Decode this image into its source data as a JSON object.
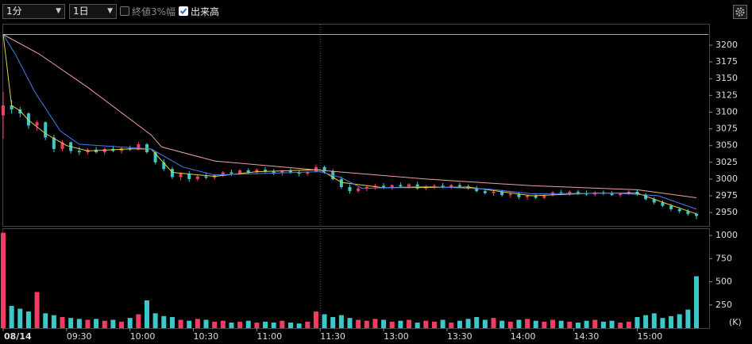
{
  "toolbar": {
    "interval": "1分",
    "range": "1日",
    "options": [
      {
        "label": "終値3%幅",
        "checked": false
      },
      {
        "label": "出来高",
        "checked": true
      }
    ]
  },
  "chart_data": [
    {
      "type": "candlestick",
      "x": [
        0,
        4,
        8,
        12,
        16,
        20,
        24,
        28,
        32,
        36,
        40,
        44,
        48,
        52,
        56,
        60,
        64,
        68,
        72,
        76,
        80,
        84,
        88,
        92,
        96,
        100,
        104,
        108,
        112,
        116,
        120,
        124,
        128,
        132,
        136,
        140,
        144,
        148,
        152,
        156,
        160,
        164,
        168,
        172,
        176,
        180,
        184,
        188,
        192,
        196,
        200,
        204,
        208,
        212,
        216,
        220,
        224,
        228,
        232,
        236,
        240,
        244,
        248,
        252,
        256,
        260,
        264,
        268,
        272,
        276,
        280,
        284,
        288,
        292,
        296,
        300,
        304,
        308,
        312,
        316,
        320,
        324,
        328
      ],
      "open": [
        3095,
        3110,
        3104,
        3098,
        3080,
        3085,
        3062,
        3045,
        3055,
        3042,
        3040,
        3044,
        3040,
        3045,
        3042,
        3046,
        3044,
        3052,
        3040,
        3025,
        3015,
        3003,
        3008,
        3000,
        3004,
        3002,
        3006,
        3010,
        3008,
        3013,
        3010,
        3014,
        3011,
        3009,
        3012,
        3010,
        3008,
        3011,
        3018,
        3012,
        3000,
        2988,
        2982,
        2986,
        2988,
        2990,
        2987,
        2991,
        2989,
        2992,
        2986,
        2989,
        2990,
        2988,
        2991,
        2989,
        2986,
        2982,
        2979,
        2981,
        2976,
        2978,
        2973,
        2975,
        2972,
        2976,
        2980,
        2978,
        2981,
        2979,
        2977,
        2980,
        2978,
        2976,
        2979,
        2981,
        2977,
        2970,
        2965,
        2960,
        2955,
        2952,
        2948
      ],
      "high": [
        3130,
        3118,
        3108,
        3100,
        3088,
        3086,
        3066,
        3058,
        3056,
        3048,
        3046,
        3048,
        3047,
        3050,
        3048,
        3050,
        3055,
        3054,
        3042,
        3030,
        3018,
        3010,
        3012,
        3006,
        3010,
        3008,
        3012,
        3014,
        3015,
        3016,
        3016,
        3018,
        3015,
        3014,
        3016,
        3013,
        3012,
        3022,
        3020,
        3015,
        3004,
        2992,
        2988,
        2990,
        2993,
        2994,
        2992,
        2995,
        2994,
        2996,
        2991,
        2993,
        2994,
        2993,
        2995,
        2992,
        2990,
        2986,
        2983,
        2984,
        2980,
        2981,
        2977,
        2978,
        2977,
        2982,
        2984,
        2983,
        2984,
        2983,
        2982,
        2983,
        2982,
        2980,
        2983,
        2984,
        2979,
        2973,
        2968,
        2963,
        2958,
        2955,
        2950
      ],
      "low": [
        3060,
        3098,
        3092,
        3075,
        3072,
        3058,
        3040,
        3042,
        3038,
        3036,
        3037,
        3038,
        3036,
        3040,
        3038,
        3042,
        3043,
        3038,
        3022,
        3012,
        3000,
        2998,
        2996,
        2997,
        3000,
        2999,
        3003,
        3005,
        3006,
        3008,
        3007,
        3009,
        3006,
        3005,
        3008,
        3004,
        3005,
        3010,
        3008,
        2998,
        2985,
        2978,
        2979,
        2982,
        2984,
        2985,
        2984,
        2987,
        2986,
        2984,
        2983,
        2985,
        2986,
        2985,
        2987,
        2984,
        2980,
        2977,
        2975,
        2974,
        2972,
        2970,
        2969,
        2970,
        2970,
        2974,
        2976,
        2975,
        2976,
        2975,
        2974,
        2976,
        2975,
        2973,
        2976,
        2975,
        2968,
        2962,
        2958,
        2952,
        2949,
        2945,
        2940
      ],
      "close": [
        3110,
        3104,
        3098,
        3080,
        3085,
        3062,
        3045,
        3055,
        3042,
        3040,
        3044,
        3040,
        3045,
        3042,
        3046,
        3044,
        3052,
        3040,
        3025,
        3015,
        3003,
        3008,
        3000,
        3004,
        3002,
        3006,
        3010,
        3008,
        3013,
        3010,
        3014,
        3011,
        3009,
        3012,
        3010,
        3008,
        3011,
        3018,
        3012,
        3000,
        2988,
        2982,
        2986,
        2988,
        2990,
        2987,
        2991,
        2989,
        2992,
        2986,
        2989,
        2990,
        2988,
        2991,
        2989,
        2986,
        2982,
        2979,
        2981,
        2976,
        2978,
        2973,
        2975,
        2972,
        2976,
        2980,
        2978,
        2981,
        2979,
        2977,
        2980,
        2978,
        2976,
        2979,
        2981,
        2977,
        2970,
        2965,
        2960,
        2955,
        2952,
        2948,
        2945
      ],
      "up_color": "#f23c64",
      "down_color": "#3cc8c8",
      "series": [
        {
          "color": "#e8d040",
          "x": [
            0,
            4,
            8,
            12,
            20,
            30,
            40,
            60,
            70,
            80,
            100,
            120,
            150,
            160,
            180,
            220,
            250,
            280,
            300,
            315,
            328
          ],
          "values": [
            3216,
            3110,
            3102,
            3088,
            3068,
            3050,
            3042,
            3045,
            3045,
            3010,
            3004,
            3011,
            3014,
            2995,
            2987,
            2988,
            2975,
            2979,
            2979,
            2962,
            2948
          ]
        },
        {
          "color": "#4a7cf0",
          "x": [
            0,
            6,
            15,
            27,
            36,
            60,
            70,
            85,
            100,
            150,
            160,
            170,
            200,
            230,
            250,
            290,
            310,
            328
          ],
          "values": [
            3216,
            3185,
            3130,
            3072,
            3052,
            3047,
            3045,
            3018,
            3006,
            3011,
            3002,
            2986,
            2989,
            2985,
            2978,
            2979,
            2975,
            2955
          ]
        },
        {
          "color": "#f0a0a0",
          "x": [
            0,
            17,
            40,
            70,
            75,
            100,
            150,
            200,
            250,
            300,
            328
          ],
          "values": [
            3216,
            3187,
            3137,
            3066,
            3048,
            3027,
            3013,
            3000,
            2990,
            2984,
            2972
          ]
        }
      ],
      "reference_line": {
        "value": 3216,
        "color": "#e8a040"
      },
      "session_break": 150,
      "xlim": [
        0,
        334
      ],
      "ylim": [
        2930,
        3232
      ],
      "yticks": [
        2950,
        2975,
        3000,
        3025,
        3050,
        3075,
        3100,
        3125,
        3150,
        3175,
        3200
      ]
    },
    {
      "type": "bar",
      "x": [
        0,
        4,
        8,
        12,
        16,
        20,
        24,
        28,
        32,
        36,
        40,
        44,
        48,
        52,
        56,
        60,
        64,
        68,
        72,
        76,
        80,
        84,
        88,
        92,
        96,
        100,
        104,
        108,
        112,
        116,
        120,
        124,
        128,
        132,
        136,
        140,
        144,
        148,
        152,
        156,
        160,
        164,
        168,
        172,
        176,
        180,
        184,
        188,
        192,
        196,
        200,
        204,
        208,
        212,
        216,
        220,
        224,
        228,
        232,
        236,
        240,
        244,
        248,
        252,
        256,
        260,
        264,
        268,
        272,
        276,
        280,
        284,
        288,
        292,
        296,
        300,
        304,
        308,
        312,
        316,
        320,
        324,
        328
      ],
      "values": [
        1030,
        240,
        210,
        180,
        390,
        160,
        140,
        120,
        110,
        100,
        90,
        100,
        80,
        90,
        70,
        110,
        150,
        300,
        160,
        130,
        120,
        90,
        80,
        100,
        90,
        70,
        80,
        60,
        70,
        80,
        60,
        70,
        60,
        80,
        60,
        50,
        70,
        180,
        150,
        120,
        140,
        110,
        90,
        80,
        100,
        90,
        70,
        80,
        90,
        60,
        80,
        70,
        90,
        60,
        80,
        100,
        120,
        90,
        110,
        80,
        70,
        90,
        100,
        80,
        70,
        90,
        80,
        70,
        60,
        80,
        90,
        70,
        80,
        60,
        70,
        120,
        140,
        160,
        110,
        130,
        150,
        200,
        560
      ],
      "unit_label": "(K)",
      "session_break": 150,
      "xlim": [
        0,
        334
      ],
      "ylim": [
        0,
        1078
      ],
      "yticks": [
        250,
        500,
        750,
        1000
      ],
      "xticks": [
        {
          "value": 0,
          "label": "08/14"
        },
        {
          "value": 30,
          "label": "09:30"
        },
        {
          "value": 60,
          "label": "10:00"
        },
        {
          "value": 90,
          "label": "10:30"
        },
        {
          "value": 120,
          "label": "11:00"
        },
        {
          "value": 150,
          "label": "11:30"
        },
        {
          "value": 180,
          "label": "13:00"
        },
        {
          "value": 210,
          "label": "13:30"
        },
        {
          "value": 240,
          "label": "14:00"
        },
        {
          "value": 270,
          "label": "14:30"
        },
        {
          "value": 300,
          "label": "15:00"
        }
      ]
    }
  ]
}
